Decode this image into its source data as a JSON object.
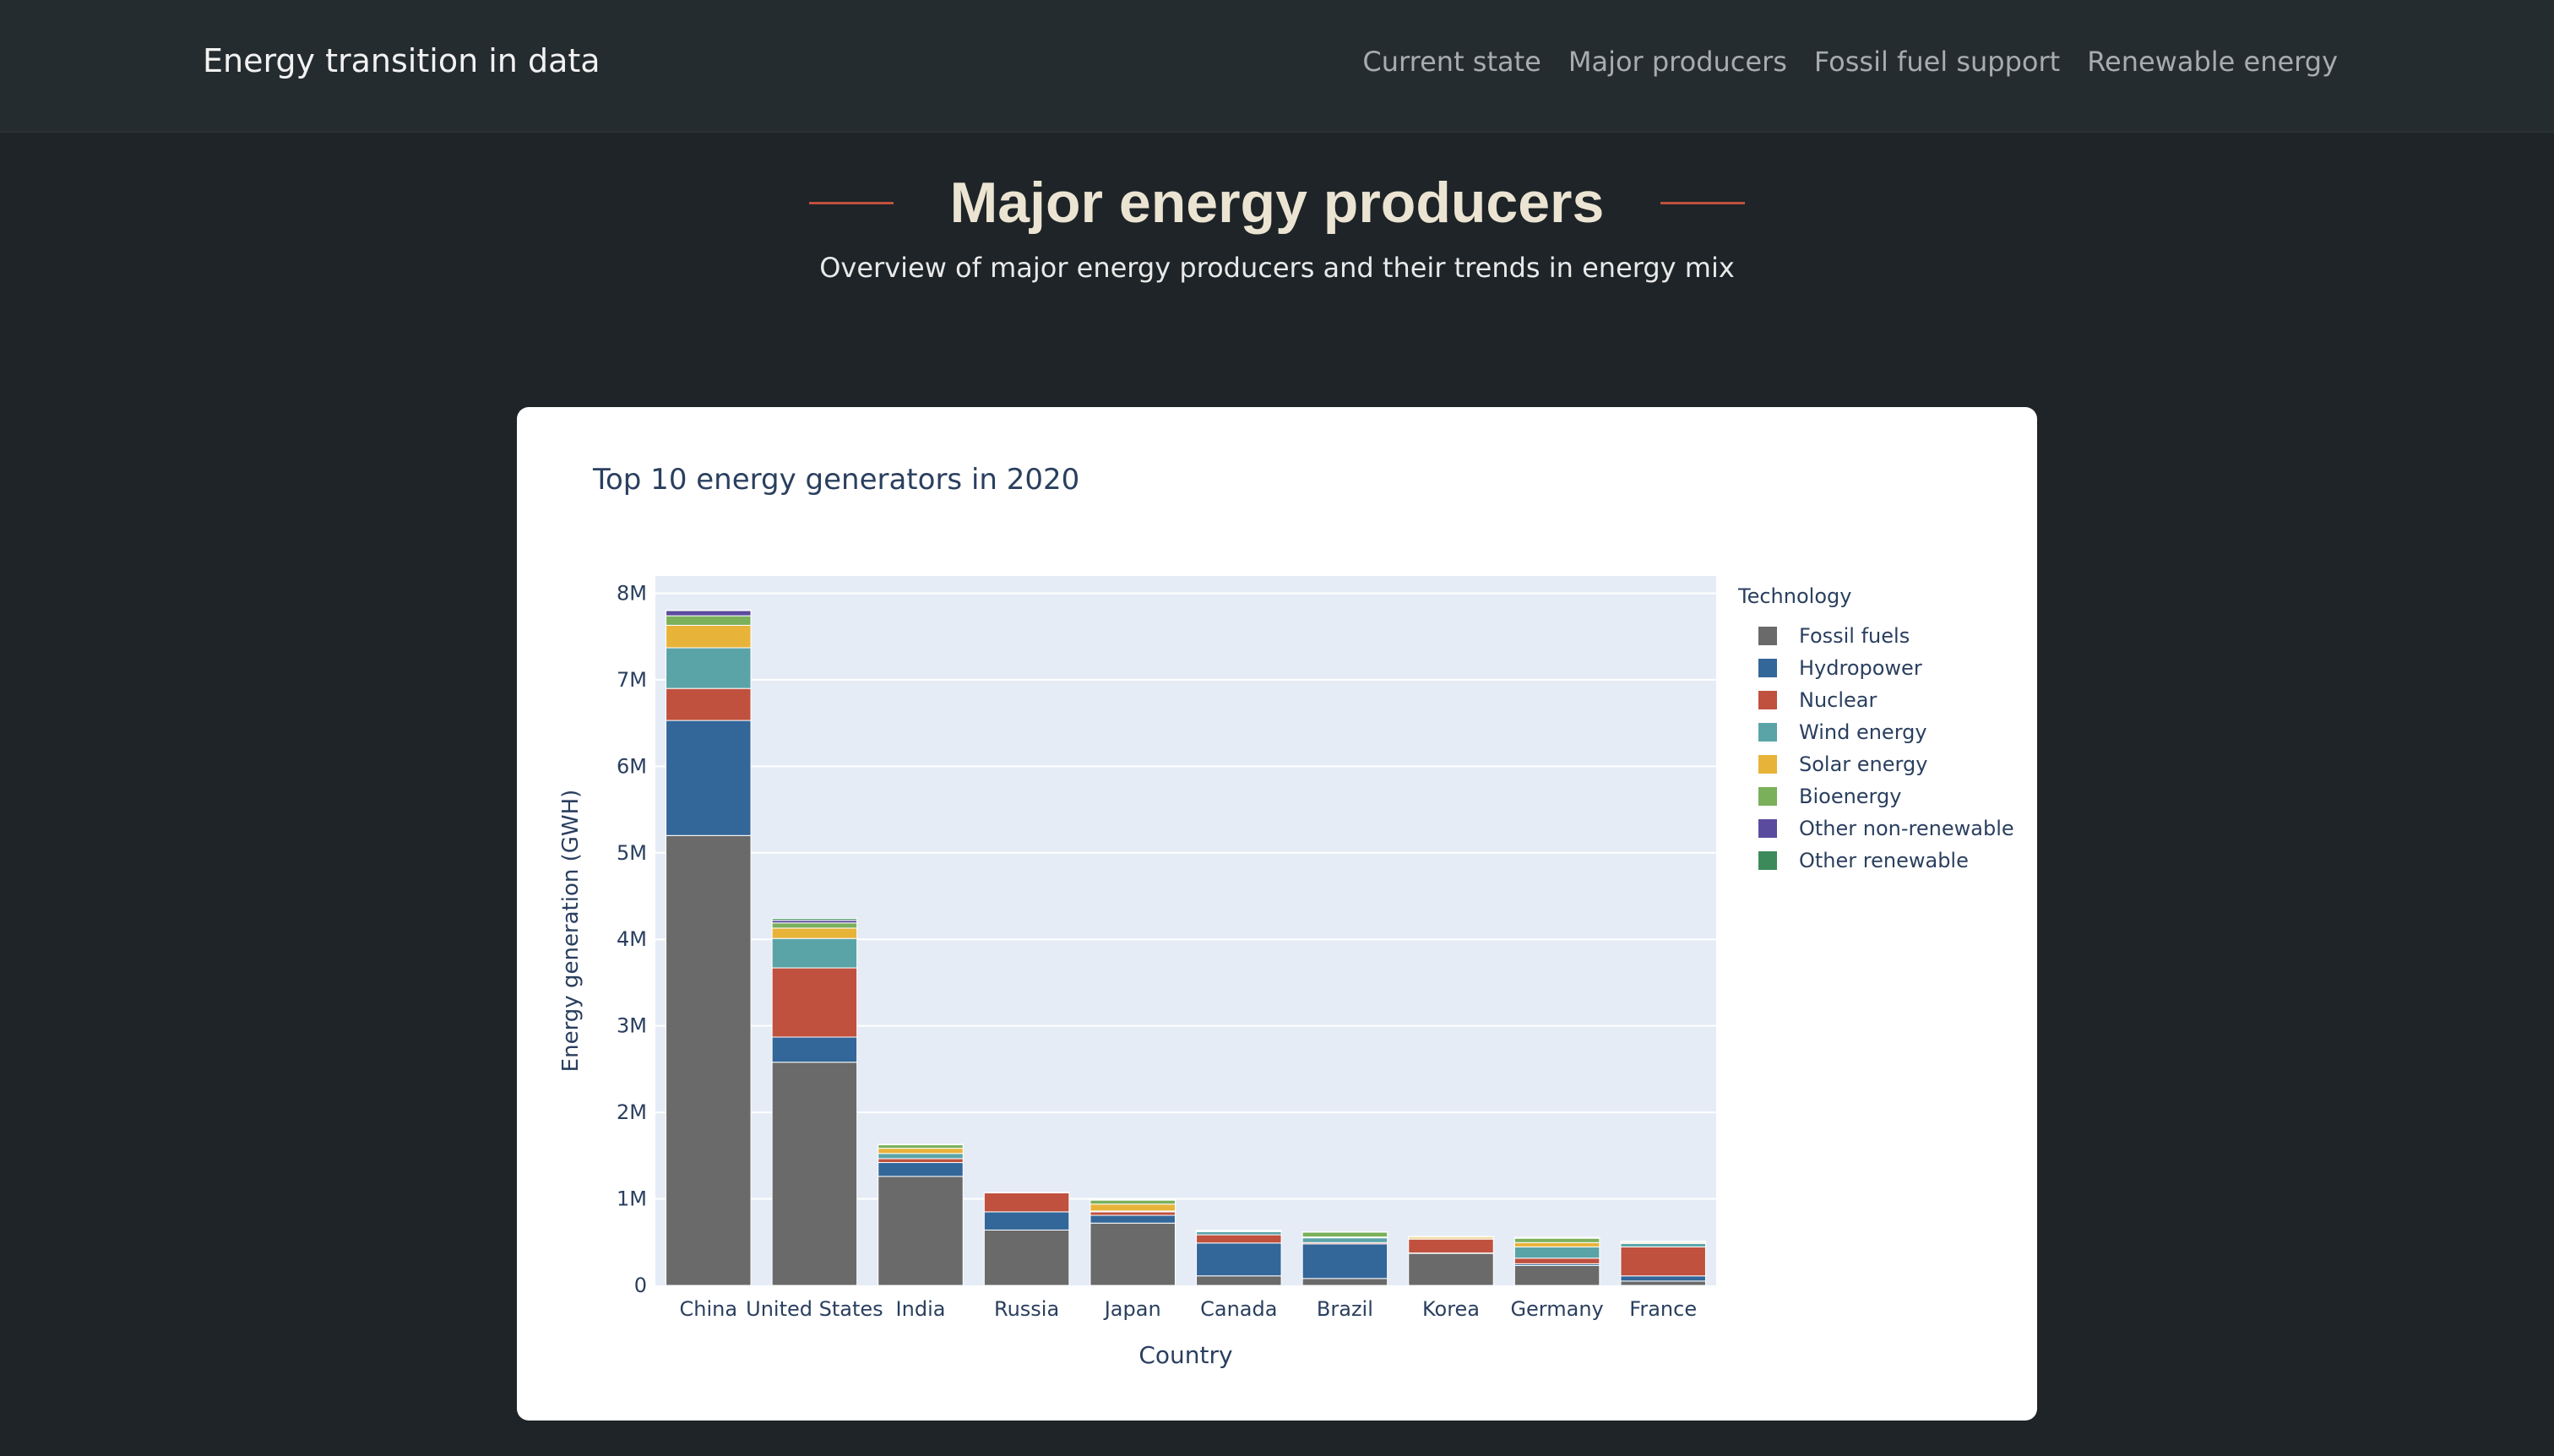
{
  "header": {
    "brand": "Energy transition in data",
    "nav": [
      {
        "label": "Current state"
      },
      {
        "label": "Major producers"
      },
      {
        "label": "Fossil fuel support"
      },
      {
        "label": "Renewable energy"
      }
    ]
  },
  "page": {
    "title": "Major energy producers",
    "subtitle": "Overview of major energy producers and their trends in energy mix"
  },
  "colors": {
    "accent": "#c0513f",
    "plot_background": "#e5ecf6"
  },
  "chart_data": {
    "type": "bar",
    "stacked": true,
    "title": "Top 10 energy generators in 2020",
    "xlabel": "Country",
    "ylabel": "Energy generation (GWH)",
    "ylim": [
      0,
      8200000
    ],
    "yticks": [
      {
        "value": 0,
        "label": "0"
      },
      {
        "value": 1000000,
        "label": "1M"
      },
      {
        "value": 2000000,
        "label": "2M"
      },
      {
        "value": 3000000,
        "label": "3M"
      },
      {
        "value": 4000000,
        "label": "4M"
      },
      {
        "value": 5000000,
        "label": "5M"
      },
      {
        "value": 6000000,
        "label": "6M"
      },
      {
        "value": 7000000,
        "label": "7M"
      },
      {
        "value": 8000000,
        "label": "8M"
      }
    ],
    "grid": true,
    "legend_title": "Technology",
    "legend_position": "right",
    "categories": [
      "China",
      "United States",
      "India",
      "Russia",
      "Japan",
      "Canada",
      "Brazil",
      "Korea",
      "Germany",
      "France"
    ],
    "series": [
      {
        "name": "Fossil fuels",
        "color": "#6a6a6a",
        "values": [
          5200000,
          2580000,
          1260000,
          640000,
          720000,
          110000,
          80000,
          370000,
          230000,
          50000
        ]
      },
      {
        "name": "Hydropower",
        "color": "#336699",
        "values": [
          1330000,
          290000,
          160000,
          210000,
          90000,
          380000,
          400000,
          5000,
          20000,
          60000
        ]
      },
      {
        "name": "Nuclear",
        "color": "#c0513f",
        "values": [
          370000,
          800000,
          45000,
          220000,
          40000,
          95000,
          15000,
          160000,
          65000,
          335000
        ]
      },
      {
        "name": "Wind energy",
        "color": "#5aa4a8",
        "values": [
          470000,
          340000,
          60000,
          1000,
          10000,
          35000,
          55000,
          3000,
          130000,
          40000
        ]
      },
      {
        "name": "Solar energy",
        "color": "#e8b339",
        "values": [
          260000,
          120000,
          60000,
          2000,
          80000,
          5000,
          10000,
          20000,
          50000,
          12000
        ]
      },
      {
        "name": "Bioenergy",
        "color": "#7ab05a",
        "values": [
          110000,
          60000,
          40000,
          3000,
          45000,
          10000,
          55000,
          5000,
          50000,
          10000
        ]
      },
      {
        "name": "Other non-renewable",
        "color": "#5b4b9e",
        "values": [
          60000,
          30000,
          5000,
          1000,
          10000,
          2000,
          3000,
          1000,
          10000,
          2000
        ]
      },
      {
        "name": "Other renewable",
        "color": "#3c8a5a",
        "values": [
          5000,
          20000,
          2000,
          1000,
          4000,
          1000,
          2000,
          1000,
          2000,
          1000
        ]
      }
    ]
  }
}
